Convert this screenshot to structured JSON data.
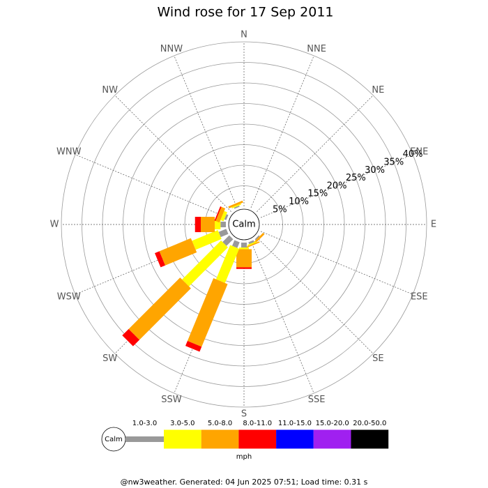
{
  "chart_data": {
    "type": "windrose",
    "title": "Wind rose for 17 Sep 2011",
    "calm_label": "Calm",
    "directions": [
      "N",
      "NNE",
      "NE",
      "ENE",
      "E",
      "ESE",
      "SE",
      "SSE",
      "S",
      "SSW",
      "SW",
      "WSW",
      "W",
      "WNW",
      "NW",
      "NNW"
    ],
    "rlim": [
      0,
      40
    ],
    "rticks": [
      {
        "value": 5,
        "label": "5%"
      },
      {
        "value": 10,
        "label": "10%"
      },
      {
        "value": 15,
        "label": "15%"
      },
      {
        "value": 20,
        "label": "20%"
      },
      {
        "value": 25,
        "label": "25%"
      },
      {
        "value": 30,
        "label": "30%"
      },
      {
        "value": 35,
        "label": "35%"
      },
      {
        "value": 40,
        "label": "40%"
      }
    ],
    "legend_title": "mph",
    "footer": "@nw3weather. Generated: 04 Jun 2025 07:51; Load time: 0.31 s",
    "series": [
      {
        "name": "1.0-3.0",
        "color": "#999999",
        "values": [
          0,
          0,
          0,
          0,
          0,
          0,
          0.3,
          0.5,
          1.2,
          1.5,
          2.3,
          2,
          1.3,
          0.5,
          0,
          0.3
        ]
      },
      {
        "name": "3.0-5.0",
        "color": "#ffff00",
        "values": [
          0,
          0,
          0,
          0,
          0,
          0,
          0,
          0.3,
          0.4,
          9,
          13.4,
          6.8,
          1.4,
          0.8,
          0,
          0.3
        ]
      },
      {
        "name": "5.0-8.0",
        "color": "#ffa500",
        "values": [
          0,
          0,
          0,
          0,
          0,
          0,
          0.5,
          0.3,
          4.4,
          16.5,
          17.7,
          8.3,
          3.4,
          1,
          0,
          0.5
        ]
      },
      {
        "name": "8.0-11.0",
        "color": "#ff0000",
        "values": [
          0,
          0,
          0,
          0,
          0,
          0,
          0,
          0,
          0.4,
          1.3,
          2.2,
          1.2,
          1.4,
          0.3,
          0,
          0
        ]
      },
      {
        "name": "11.0-15.0",
        "color": "#0000ff",
        "values": [
          0,
          0,
          0,
          0,
          0,
          0,
          0,
          0,
          0,
          0,
          0,
          0,
          0,
          0,
          0,
          0
        ]
      },
      {
        "name": "15.0-20.0",
        "color": "#a020f0",
        "values": [
          0,
          0,
          0,
          0,
          0,
          0,
          0,
          0,
          0,
          0,
          0,
          0,
          0,
          0,
          0,
          0
        ]
      },
      {
        "name": "20.0-50.0",
        "color": "#000000",
        "values": [
          0,
          0,
          0,
          0,
          0,
          0,
          0,
          0,
          0,
          0,
          0,
          0,
          0,
          0,
          0,
          0
        ]
      }
    ]
  }
}
